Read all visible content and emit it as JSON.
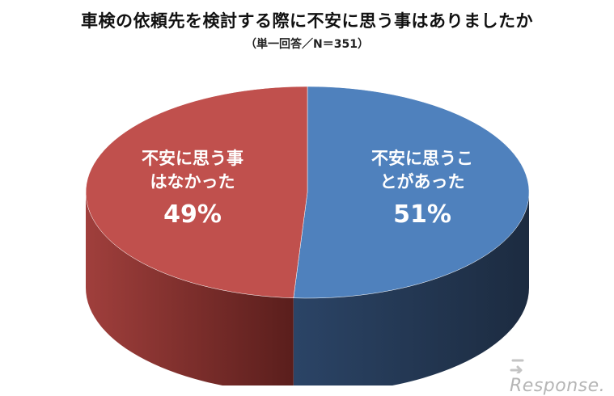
{
  "chart_data": {
    "type": "pie",
    "title": "車検の依頼先を検討する際に不安に思う事はありましたか",
    "subtitle": "（単一回答／N＝351）",
    "slices": [
      {
        "label_line1": "不安に思うこ",
        "label_line2": "とがあった",
        "value": 51,
        "value_label": "51%",
        "color": "#4f81bd",
        "side_color": "#22344f"
      },
      {
        "label_line1": "不安に思う事",
        "label_line2": "はなかった",
        "value": 49,
        "value_label": "49%",
        "color": "#c0504d",
        "side_color": "#6e2422"
      }
    ]
  },
  "watermark": {
    "text": "Response."
  }
}
